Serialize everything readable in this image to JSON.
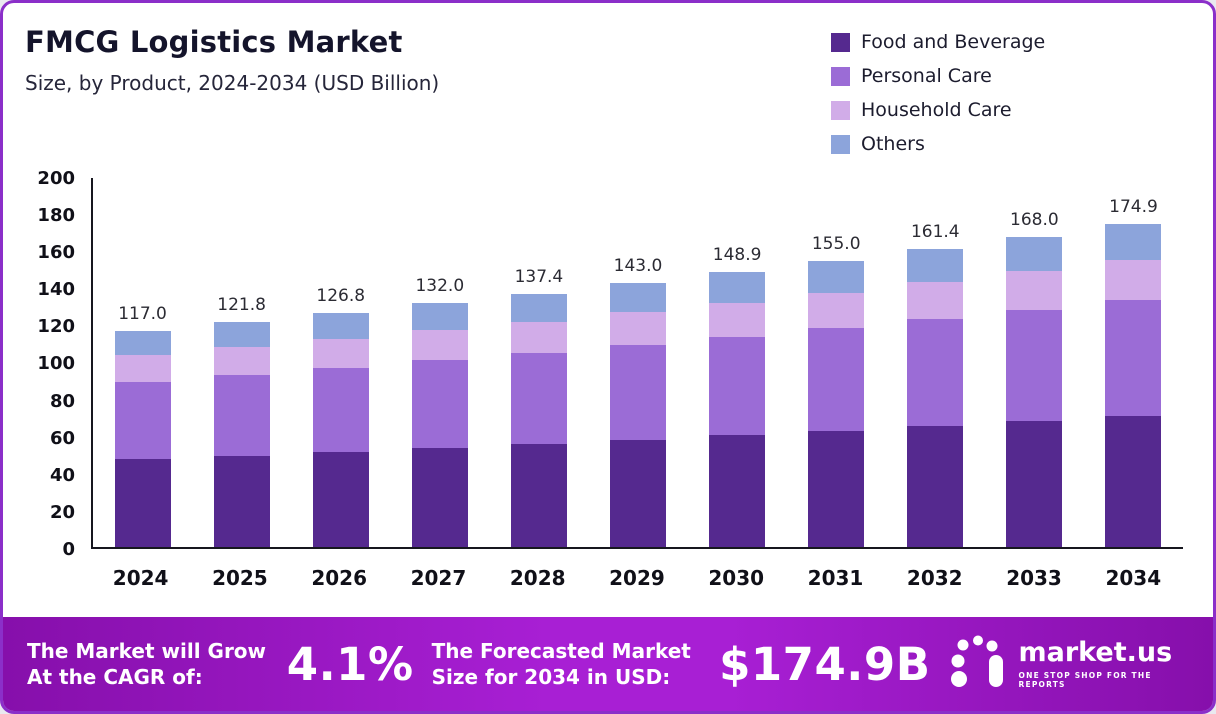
{
  "header": {
    "title": "FMCG Logistics Market",
    "subtitle": "Size, by Product, 2024-2034 (USD Billion)"
  },
  "chart_data": {
    "type": "bar",
    "stacked": true,
    "title": "FMCG Logistics Market Size, by Product, 2024-2034 (USD Billion)",
    "categories": [
      "2024",
      "2025",
      "2026",
      "2027",
      "2028",
      "2029",
      "2030",
      "2031",
      "2032",
      "2033",
      "2034"
    ],
    "series": [
      {
        "name": "Food and Beverage",
        "color": "#55298f",
        "values": [
          47.5,
          49.5,
          51.5,
          53.6,
          55.8,
          58.1,
          60.5,
          63.0,
          65.6,
          68.3,
          71.1
        ]
      },
      {
        "name": "Personal Care",
        "color": "#9b6cd6",
        "values": [
          42.0,
          43.8,
          45.6,
          47.5,
          49.4,
          51.4,
          53.5,
          55.7,
          58.0,
          60.4,
          62.9
        ]
      },
      {
        "name": "Household Care",
        "color": "#d1ace8",
        "values": [
          14.5,
          15.0,
          15.7,
          16.3,
          17.0,
          17.7,
          18.4,
          19.2,
          20.0,
          20.8,
          21.6
        ]
      },
      {
        "name": "Others",
        "color": "#8ca4db",
        "values": [
          13.0,
          13.5,
          14.0,
          14.6,
          15.2,
          15.8,
          16.5,
          17.1,
          17.8,
          18.5,
          19.3
        ]
      }
    ],
    "totals": [
      117.0,
      121.8,
      126.8,
      132.0,
      137.4,
      143.0,
      148.9,
      155.0,
      161.4,
      168.0,
      174.9
    ],
    "ylim": [
      0,
      200
    ],
    "yticks": [
      200,
      180,
      160,
      140,
      120,
      100,
      80,
      60,
      40,
      20,
      0
    ],
    "grid": false,
    "legend_position": "top-right"
  },
  "footer": {
    "cagr_label": "The Market will Grow At the CAGR of:",
    "cagr_value": "4.1%",
    "forecast_label": "The Forecasted Market Size for 2034 in USD:",
    "forecast_value": "$174.9B",
    "brand": "market.us",
    "brand_tagline": "ONE STOP SHOP FOR THE REPORTS"
  }
}
